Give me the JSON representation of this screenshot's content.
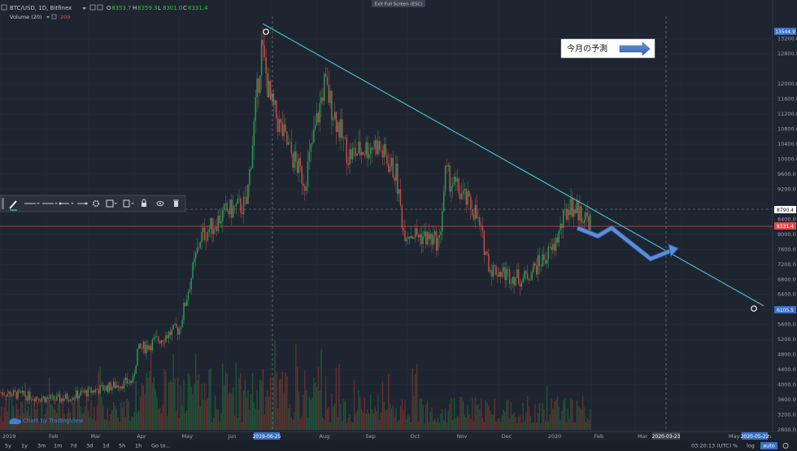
{
  "header": {
    "symbol": "BTC/USD, 1D, Bitfinex",
    "o_label": "O",
    "o": "8353.7",
    "h_label": "H",
    "h": "8359.3",
    "l_label": "L",
    "l": "8301.0",
    "c_label": "C",
    "c": "8331.4",
    "volume": "Volume (20)",
    "volume_value": "209",
    "exit_full_screen": "Exit Full Screen (ESC)"
  },
  "annotation": {
    "text": "今月の予測"
  },
  "watermark": "Chart by TradingView",
  "price_axis": {
    "ticks": [
      "13200.0",
      "12800.0",
      "12000.0",
      "11600.0",
      "11200.0",
      "10800.0",
      "10400.0",
      "10000.0",
      "9600.0",
      "9200.0",
      "8400.0",
      "8000.0",
      "7600.0",
      "7200.0",
      "6800.0",
      "6400.0",
      "6000.0",
      "5600.0",
      "5200.0",
      "4800.0",
      "4400.0",
      "4000.0",
      "3600.0",
      "3200.0",
      "2800.0"
    ],
    "badges": {
      "top": "13544.9",
      "mid": "8790.4",
      "last": "8331.4",
      "low": "6105.5"
    }
  },
  "time_axis": {
    "labels": [
      "2019",
      "Feb",
      "Mar",
      "Apr",
      "May",
      "Jun",
      "Aug",
      "Sep",
      "Oct",
      "Nov",
      "Dec",
      "2020",
      "Feb",
      "Mar",
      "May",
      "un"
    ],
    "highlight_left": "2019-06-25",
    "highlight_mid": "2020-03-23",
    "highlight_right": "2020-05-22"
  },
  "bottom_bar": {
    "ranges": [
      "5y",
      "1y",
      "3m",
      "1m",
      "7d",
      "3d",
      "1d",
      "5h",
      "1h"
    ],
    "goto": "Go to...",
    "time": "03:20:13 (UTC)",
    "pct": "%",
    "log": "log",
    "auto": "auto"
  },
  "chart_data": {
    "type": "candlestick",
    "title": "BTC/USD, 1D, Bitfinex",
    "ylim": [
      2800,
      13800
    ],
    "y_scale": "linear",
    "x_range": [
      "2019-01-01",
      "2020-06-01"
    ],
    "ohlc_last": {
      "open": 8353.7,
      "high": 8359.3,
      "low": 8301.0,
      "close": 8331.4
    },
    "close_path": [
      [
        "2019-01-01",
        3800
      ],
      [
        "2019-02-08",
        3600
      ],
      [
        "2019-03-31",
        4100
      ],
      [
        "2019-04-03",
        4900
      ],
      [
        "2019-05-01",
        5500
      ],
      [
        "2019-05-15",
        7900
      ],
      [
        "2019-06-01",
        8600
      ],
      [
        "2019-06-15",
        8800
      ],
      [
        "2019-06-25",
        13000
      ],
      [
        "2019-07-01",
        11500
      ],
      [
        "2019-07-14",
        10200
      ],
      [
        "2019-07-24",
        9400
      ],
      [
        "2019-08-06",
        12000
      ],
      [
        "2019-08-22",
        10100
      ],
      [
        "2019-09-10",
        10400
      ],
      [
        "2019-09-23",
        9600
      ],
      [
        "2019-09-28",
        8100
      ],
      [
        "2019-10-22",
        7800
      ],
      [
        "2019-10-26",
        9600
      ],
      [
        "2019-11-15",
        8600
      ],
      [
        "2019-11-25",
        7100
      ],
      [
        "2019-12-17",
        6800
      ],
      [
        "2020-01-06",
        7600
      ],
      [
        "2020-01-17",
        8800
      ],
      [
        "2020-01-31",
        8350
      ]
    ],
    "trendline": [
      [
        "2019-06-26",
        13600
      ],
      [
        "2020-05-26",
        6100
      ]
    ],
    "horizontal_lines": [
      8790.4,
      8331.4
    ],
    "forecast_path": [
      [
        "2020-02-01",
        8300
      ],
      [
        "2020-02-10",
        8050
      ],
      [
        "2020-02-20",
        8380
      ],
      [
        "2020-03-13",
        7400
      ],
      [
        "2020-03-28",
        7700
      ]
    ],
    "volume_panel": true
  }
}
